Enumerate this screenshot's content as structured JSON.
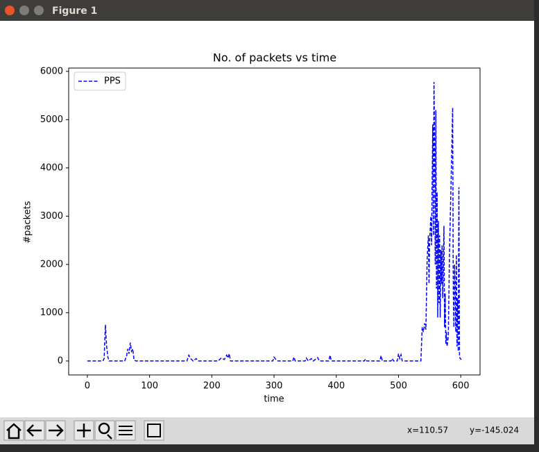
{
  "window": {
    "title": "Figure 1"
  },
  "status": {
    "x": "x=110.57",
    "y": "y=-145.024"
  },
  "chart_data": {
    "type": "line",
    "title": "No. of packets vs time",
    "x_label": "time",
    "y_label": "#packets",
    "x": [
      0,
      25,
      27,
      29,
      31,
      33,
      35,
      60,
      63,
      65,
      67,
      69,
      71,
      73,
      75,
      78,
      160,
      163,
      166,
      170,
      175,
      178,
      210,
      215,
      220,
      224,
      226,
      228,
      230,
      298,
      300,
      303,
      306,
      330,
      332,
      334,
      350,
      352,
      355,
      360,
      363,
      370,
      373,
      388,
      390,
      392,
      445,
      447,
      449,
      470,
      472,
      474,
      488,
      490,
      492,
      498,
      500,
      502,
      504,
      506,
      536,
      538,
      540,
      542,
      544,
      546,
      548,
      549,
      550,
      552,
      553,
      555,
      556,
      557,
      558,
      559,
      560,
      561,
      562,
      563,
      564,
      565,
      566,
      567,
      568,
      569,
      570,
      571,
      572,
      573,
      574,
      575,
      576,
      577,
      578,
      580,
      582,
      585,
      587,
      588,
      589,
      590,
      591,
      592,
      593,
      594,
      595,
      596,
      597,
      598,
      599,
      601
    ],
    "series": [
      {
        "name": "PPS",
        "color": "#0000ff",
        "values": [
          0,
          0,
          50,
          750,
          300,
          80,
          0,
          0,
          100,
          250,
          150,
          380,
          200,
          250,
          20,
          0,
          0,
          120,
          50,
          0,
          50,
          0,
          0,
          60,
          30,
          120,
          60,
          150,
          0,
          0,
          80,
          30,
          0,
          0,
          80,
          0,
          0,
          60,
          0,
          50,
          0,
          70,
          0,
          0,
          120,
          0,
          0,
          40,
          0,
          0,
          110,
          0,
          0,
          50,
          0,
          0,
          150,
          50,
          130,
          0,
          0,
          700,
          600,
          780,
          650,
          2100,
          2600,
          1600,
          2500,
          3000,
          2400,
          4900,
          2600,
          5780,
          4500,
          2000,
          5200,
          1500,
          3500,
          900,
          2900,
          1200,
          2600,
          900,
          2300,
          1600,
          2400,
          1300,
          2000,
          2800,
          700,
          1400,
          350,
          600,
          300,
          500,
          2300,
          4000,
          5250,
          1500,
          700,
          2000,
          1600,
          600,
          2200,
          300,
          1300,
          200,
          3600,
          100,
          50,
          30
        ]
      }
    ],
    "xlim": [
      -30,
      631
    ],
    "ylim": [
      -289,
      6069
    ],
    "xticks": [
      0,
      100,
      200,
      300,
      400,
      500,
      600
    ],
    "yticks": [
      0,
      1000,
      2000,
      3000,
      4000,
      5000,
      6000
    ],
    "grid": false,
    "legend": "upper left"
  }
}
